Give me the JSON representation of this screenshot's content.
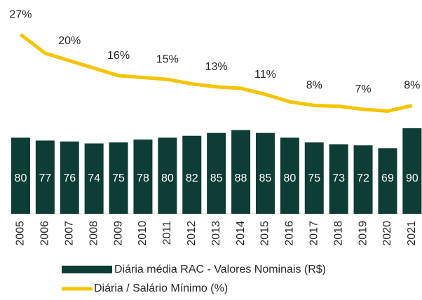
{
  "chart_data": {
    "type": "bar",
    "categories": [
      "2005",
      "2006",
      "2007",
      "2008",
      "2009",
      "2010",
      "2011",
      "2012",
      "2013",
      "2014",
      "2015",
      "2016",
      "2017",
      "2018",
      "2019",
      "2020",
      "2021"
    ],
    "series": [
      {
        "name": "Diária média RAC - Valores Nominais (R$)",
        "type": "bar",
        "color": "#0d3d35",
        "values": [
          80,
          77,
          76,
          74,
          75,
          78,
          80,
          82,
          85,
          88,
          85,
          80,
          75,
          73,
          72,
          69,
          90
        ]
      },
      {
        "name": "Diária / Salário Mínimo (%)",
        "type": "line",
        "axis": "y2",
        "color": "#f5c400",
        "values": [
          27,
          22,
          20,
          18,
          16,
          15.5,
          15,
          13.8,
          13,
          12.6,
          11,
          9,
          8,
          7.8,
          7,
          6.5,
          8
        ],
        "value_labels": [
          "27%",
          null,
          "20%",
          null,
          "16%",
          null,
          "15%",
          null,
          "13%",
          null,
          "11%",
          null,
          "8%",
          null,
          "7%",
          null,
          "8%"
        ]
      }
    ],
    "ylim": [
      0,
      210
    ],
    "y2lim": [
      -21,
      32.5
    ]
  }
}
